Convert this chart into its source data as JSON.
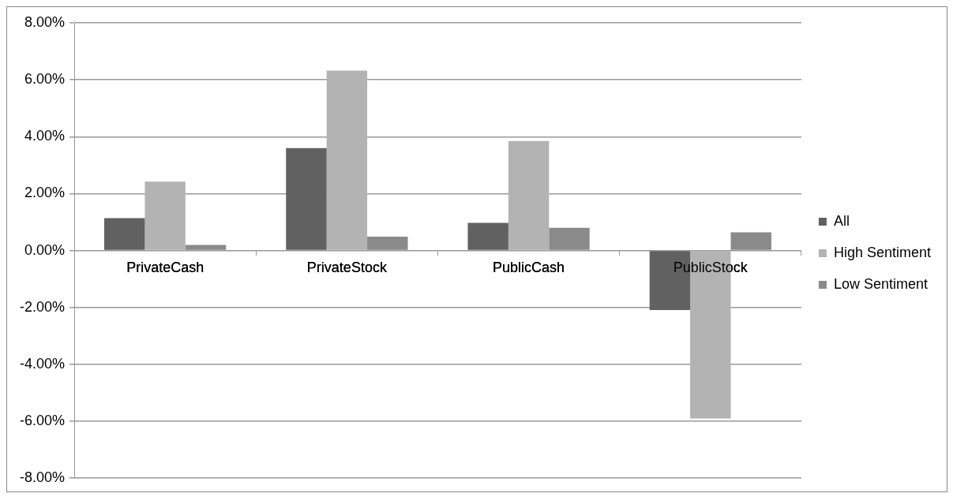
{
  "chart_data": {
    "type": "bar",
    "categories": [
      "PrivateCash",
      "PrivateStock",
      "PublicCash",
      "PublicStock"
    ],
    "series": [
      {
        "name": "All",
        "color": "#616161",
        "values": [
          1.14,
          3.6,
          0.97,
          -2.09
        ]
      },
      {
        "name": "High Sentiment",
        "color": "#b3b3b3",
        "values": [
          2.42,
          6.32,
          3.85,
          -5.9
        ]
      },
      {
        "name": "Low Sentiment",
        "color": "#8a8a8a",
        "values": [
          0.2,
          0.49,
          0.8,
          0.64
        ]
      }
    ],
    "ylim": [
      -8,
      8
    ],
    "yticks": [
      {
        "value": -8,
        "label": "-8.00%"
      },
      {
        "value": -6,
        "label": "-6.00%"
      },
      {
        "value": -4,
        "label": "-4.00%"
      },
      {
        "value": -2,
        "label": "-2.00%"
      },
      {
        "value": 0,
        "label": "0.00%"
      },
      {
        "value": 2,
        "label": "2.00%"
      },
      {
        "value": 4,
        "label": "4.00%"
      },
      {
        "value": 6,
        "label": "6.00%"
      },
      {
        "value": 8,
        "label": "8.00%"
      }
    ],
    "grid": "y",
    "legend": "right"
  }
}
